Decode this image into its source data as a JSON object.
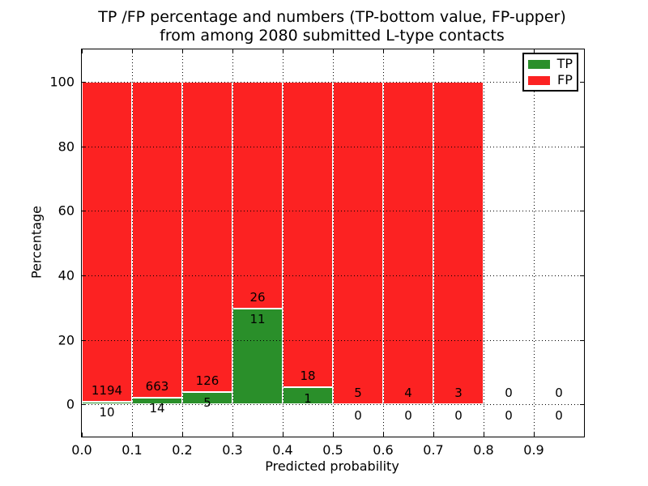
{
  "chart_data": {
    "type": "bar",
    "stacked": true,
    "title_line1": "TP /FP percentage and numbers (TP-bottom value, FP-upper)",
    "title_line2": "from among 2080 submitted L-type contacts",
    "total_submitted_contacts": 2080,
    "xlabel": "Predicted probability",
    "ylabel": "Percentage",
    "xlim": [
      0.0,
      1.0
    ],
    "ylim": [
      -10,
      110
    ],
    "bin_width": 0.1,
    "xticks": [
      "0.0",
      "0.1",
      "0.2",
      "0.3",
      "0.4",
      "0.5",
      "0.6",
      "0.7",
      "0.8",
      "0.9"
    ],
    "yticks": [
      "0",
      "20",
      "40",
      "60",
      "80",
      "100"
    ],
    "grid": "dotted",
    "legend_position": "upper right",
    "legend": [
      {
        "label": "TP",
        "color": "#2a8f2a"
      },
      {
        "label": "FP",
        "color": "#fc2222"
      }
    ],
    "colors": {
      "tp": "#2a8f2a",
      "fp": "#fc2222",
      "bar_edge": "#ffffff"
    },
    "bins": [
      {
        "x0": 0.0,
        "x1": 0.1,
        "tp_count": 10,
        "fp_count": 1194,
        "tp_pct": 0.83,
        "fp_pct": 99.17
      },
      {
        "x0": 0.1,
        "x1": 0.2,
        "tp_count": 14,
        "fp_count": 663,
        "tp_pct": 2.07,
        "fp_pct": 97.93
      },
      {
        "x0": 0.2,
        "x1": 0.3,
        "tp_count": 5,
        "fp_count": 126,
        "tp_pct": 3.82,
        "fp_pct": 96.18
      },
      {
        "x0": 0.3,
        "x1": 0.4,
        "tp_count": 11,
        "fp_count": 26,
        "tp_pct": 29.73,
        "fp_pct": 70.27
      },
      {
        "x0": 0.4,
        "x1": 0.5,
        "tp_count": 1,
        "fp_count": 18,
        "tp_pct": 5.26,
        "fp_pct": 94.74
      },
      {
        "x0": 0.5,
        "x1": 0.6,
        "tp_count": 0,
        "fp_count": 5,
        "tp_pct": 0,
        "fp_pct": 100
      },
      {
        "x0": 0.6,
        "x1": 0.7,
        "tp_count": 0,
        "fp_count": 4,
        "tp_pct": 0,
        "fp_pct": 100
      },
      {
        "x0": 0.7,
        "x1": 0.8,
        "tp_count": 0,
        "fp_count": 3,
        "tp_pct": 0,
        "fp_pct": 100
      },
      {
        "x0": 0.8,
        "x1": 0.9,
        "tp_count": 0,
        "fp_count": 0,
        "tp_pct": 0,
        "fp_pct": 0
      },
      {
        "x0": 0.9,
        "x1": 1.0,
        "tp_count": 0,
        "fp_count": 0,
        "tp_pct": 0,
        "fp_pct": 0
      }
    ]
  }
}
